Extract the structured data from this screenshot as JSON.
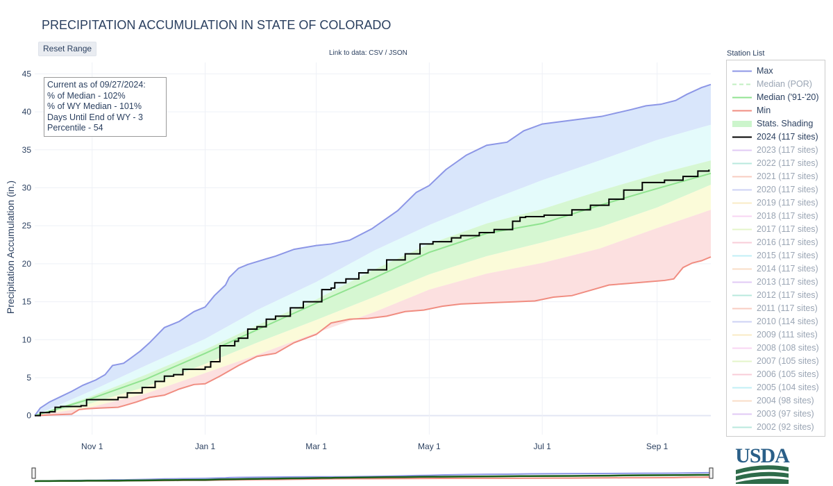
{
  "page": {
    "title": "PRECIPITATION ACCUMULATION IN STATE OF COLORADO",
    "reset_label": "Reset Range",
    "link_text": "Link to data:",
    "csv_label": "CSV",
    "separator": "/",
    "json_label": "JSON",
    "logo_text": "USDA"
  },
  "annotation": {
    "lines": [
      "Current as of 09/27/2024:",
      "% of Median - 102%",
      "% of WY Median - 101%",
      "Days Until End of WY - 3",
      "Percentile - 54"
    ]
  },
  "legend": {
    "title": "Station List",
    "items": [
      {
        "label": "Max",
        "color": "#8c96e6",
        "style": "solid",
        "faded": false
      },
      {
        "label": "Median (POR)",
        "color": "#90e390",
        "style": "dash",
        "faded": true
      },
      {
        "label": "Median ('91-'20)",
        "color": "#90e390",
        "style": "solid",
        "faded": false
      },
      {
        "label": "Min",
        "color": "#f08c80",
        "style": "solid",
        "faded": false
      },
      {
        "label": "Stats. Shading",
        "color": "#ccf5cc",
        "style": "band",
        "faded": false
      },
      {
        "label": "2024 (117 sites)",
        "color": "#000000",
        "style": "solid",
        "faded": false
      },
      {
        "label": "2023 (117 sites)",
        "color": "#c9a0ee",
        "style": "solid",
        "faded": true
      },
      {
        "label": "2022 (117 sites)",
        "color": "#7fd7c4",
        "style": "solid",
        "faded": true
      },
      {
        "label": "2021 (117 sites)",
        "color": "#f4a48e",
        "style": "solid",
        "faded": true
      },
      {
        "label": "2020 (117 sites)",
        "color": "#a5acec",
        "style": "solid",
        "faded": true
      },
      {
        "label": "2019 (117 sites)",
        "color": "#f5dc96",
        "style": "solid",
        "faded": true
      },
      {
        "label": "2018 (117 sites)",
        "color": "#f4b4ea",
        "style": "solid",
        "faded": true
      },
      {
        "label": "2017 (117 sites)",
        "color": "#cfee9e",
        "style": "solid",
        "faded": true
      },
      {
        "label": "2016 (117 sites)",
        "color": "#f4a4b9",
        "style": "solid",
        "faded": true
      },
      {
        "label": "2015 (117 sites)",
        "color": "#8fe3ef",
        "style": "solid",
        "faded": true
      },
      {
        "label": "2014 (117 sites)",
        "color": "#f7c39a",
        "style": "solid",
        "faded": true
      },
      {
        "label": "2013 (117 sites)",
        "color": "#c9a0ee",
        "style": "solid",
        "faded": true
      },
      {
        "label": "2012 (117 sites)",
        "color": "#7fd7c4",
        "style": "solid",
        "faded": true
      },
      {
        "label": "2011 (117 sites)",
        "color": "#f4a48e",
        "style": "solid",
        "faded": true
      },
      {
        "label": "2010 (114 sites)",
        "color": "#a5acec",
        "style": "solid",
        "faded": true
      },
      {
        "label": "2009 (111 sites)",
        "color": "#f5dc96",
        "style": "solid",
        "faded": true
      },
      {
        "label": "2008 (108 sites)",
        "color": "#f4b4ea",
        "style": "solid",
        "faded": true
      },
      {
        "label": "2007 (105 sites)",
        "color": "#cfee9e",
        "style": "solid",
        "faded": true
      },
      {
        "label": "2006 (105 sites)",
        "color": "#f4a4b9",
        "style": "solid",
        "faded": true
      },
      {
        "label": "2005 (104 sites)",
        "color": "#8fe3ef",
        "style": "solid",
        "faded": true
      },
      {
        "label": "2004 (98 sites)",
        "color": "#f7c39a",
        "style": "solid",
        "faded": true
      },
      {
        "label": "2003 (97 sites)",
        "color": "#c9a0ee",
        "style": "solid",
        "faded": true
      },
      {
        "label": "2002 (92 sites)",
        "color": "#7fd7c4",
        "style": "solid",
        "faded": true
      }
    ]
  },
  "chart_data": {
    "type": "area",
    "title": "PRECIPITATION ACCUMULATION IN STATE OF COLORADO",
    "xlabel": "",
    "ylabel": "Precipitation Accumulation (in.)",
    "x_unit": "days since Oct 1",
    "xlim": [
      0,
      365
    ],
    "ylim": [
      -2.5,
      46.5
    ],
    "x_ticks": [
      {
        "day": 31,
        "label": "Nov 1"
      },
      {
        "day": 92,
        "label": "Jan 1"
      },
      {
        "day": 152,
        "label": "Mar 1"
      },
      {
        "day": 213,
        "label": "May 1"
      },
      {
        "day": 274,
        "label": "Jul 1"
      },
      {
        "day": 336,
        "label": "Sep 1"
      }
    ],
    "y_ticks": [
      0,
      5,
      10,
      15,
      20,
      25,
      30,
      35,
      40,
      45
    ],
    "series": [
      {
        "name": "Max",
        "color": "#8c96e6",
        "x": [
          0,
          3,
          8,
          14,
          20,
          26,
          33,
          38,
          42,
          48,
          52,
          57,
          62,
          70,
          78,
          86,
          92,
          97,
          103,
          105,
          110,
          115,
          123,
          130,
          140,
          152,
          160,
          170,
          182,
          196,
          206,
          213,
          222,
          233,
          244,
          255,
          264,
          274,
          290,
          306,
          322,
          330,
          338,
          346,
          352,
          360,
          365
        ],
        "y": [
          0,
          1.0,
          1.8,
          2.5,
          3.2,
          4.0,
          4.7,
          5.4,
          6.6,
          6.9,
          7.6,
          8.5,
          9.6,
          11.6,
          12.4,
          13.7,
          14.3,
          15.8,
          17.2,
          18.2,
          19.4,
          19.9,
          20.5,
          21.0,
          21.9,
          22.4,
          22.6,
          23.1,
          24.6,
          27.0,
          29.4,
          30.3,
          32.4,
          34.3,
          35.6,
          36.0,
          37.5,
          38.4,
          38.9,
          39.4,
          40.3,
          40.8,
          41.0,
          41.5,
          42.3,
          43.2,
          43.6
        ]
      },
      {
        "name": "Stats. Shading (90th)",
        "color": "#dbe9fb",
        "x": [
          0,
          30,
          60,
          92,
          120,
          152,
          183,
          213,
          244,
          274,
          305,
          336,
          365
        ],
        "y": [
          0,
          3.2,
          6.6,
          10.1,
          13.9,
          17.6,
          21.7,
          25.1,
          28.2,
          31.0,
          33.6,
          36.3,
          38.3
        ]
      },
      {
        "name": "Stats. Shading (70th)",
        "color": "#e6fbfb",
        "x": [
          0,
          30,
          60,
          92,
          120,
          152,
          183,
          213,
          244,
          274,
          305,
          336,
          365
        ],
        "y": [
          0,
          2.5,
          5.4,
          8.7,
          11.9,
          15.3,
          19.2,
          22.6,
          25.3,
          27.2,
          29.6,
          31.8,
          33.6
        ]
      },
      {
        "name": "Median ('91-'20)",
        "color": "#90e390",
        "x": [
          0,
          30,
          60,
          92,
          120,
          152,
          183,
          213,
          244,
          274,
          305,
          336,
          365
        ],
        "y": [
          0,
          2.2,
          4.8,
          8.2,
          11.3,
          14.8,
          18.1,
          21.5,
          24.0,
          25.3,
          27.7,
          29.9,
          31.9
        ]
      },
      {
        "name": "Stats. Shading (30th)",
        "color": "#fbfbdc",
        "x": [
          0,
          30,
          60,
          92,
          120,
          152,
          183,
          213,
          244,
          274,
          305,
          336,
          365
        ],
        "y": [
          0,
          1.6,
          3.8,
          6.8,
          9.6,
          12.6,
          15.6,
          18.6,
          21.0,
          22.8,
          24.8,
          27.4,
          30.4
        ]
      },
      {
        "name": "Stats. Shading (10th)",
        "color": "#fce2e2",
        "x": [
          0,
          30,
          60,
          92,
          120,
          152,
          183,
          213,
          244,
          274,
          305,
          336,
          365
        ],
        "y": [
          0,
          1.1,
          2.9,
          5.6,
          8.0,
          10.9,
          13.6,
          16.6,
          18.7,
          20.1,
          22.0,
          24.7,
          27.1
        ]
      },
      {
        "name": "Min",
        "color": "#f08c80",
        "x": [
          0,
          10,
          20,
          24,
          28,
          35,
          45,
          48,
          55,
          62,
          70,
          78,
          86,
          92,
          100,
          110,
          120,
          130,
          140,
          152,
          160,
          170,
          180,
          190,
          200,
          210,
          220,
          230,
          240,
          250,
          260,
          270,
          280,
          290,
          300,
          310,
          320,
          330,
          340,
          345,
          350,
          355,
          360,
          365
        ],
        "y": [
          0,
          0.1,
          0.2,
          0.8,
          0.9,
          1.0,
          1.1,
          1.3,
          1.8,
          2.4,
          2.7,
          3.5,
          4.1,
          4.2,
          5.2,
          6.6,
          7.8,
          8.2,
          9.6,
          10.7,
          12.2,
          12.7,
          12.8,
          13.1,
          13.7,
          13.9,
          14.4,
          14.7,
          14.8,
          14.9,
          15.0,
          15.1,
          15.6,
          15.8,
          16.5,
          17.2,
          17.4,
          17.6,
          17.8,
          18.0,
          19.5,
          20.1,
          20.4,
          20.9
        ]
      },
      {
        "name": "2024 (117 sites)",
        "color": "#000000",
        "x": [
          0,
          3,
          8,
          11,
          14,
          25,
          28,
          45,
          50,
          58,
          65,
          70,
          75,
          80,
          92,
          95,
          100,
          108,
          110,
          115,
          120,
          125,
          130,
          138,
          145,
          155,
          160,
          162,
          168,
          175,
          180,
          190,
          200,
          208,
          215,
          225,
          230,
          240,
          248,
          258,
          262,
          265,
          275,
          290,
          300,
          310,
          318,
          328,
          340,
          350,
          358,
          364
        ],
        "y": [
          0,
          0.4,
          0.5,
          1.1,
          1.2,
          1.3,
          2.1,
          2.4,
          3.0,
          3.7,
          4.5,
          5.2,
          5.4,
          6.1,
          6.4,
          7.1,
          9.2,
          9.8,
          10.2,
          11.4,
          11.7,
          12.7,
          13.1,
          14.2,
          15.0,
          16.6,
          16.8,
          17.5,
          18.0,
          18.8,
          19.2,
          20.5,
          21.3,
          22.6,
          22.9,
          23.4,
          23.7,
          24.1,
          24.5,
          25.6,
          26.1,
          26.2,
          26.4,
          27.1,
          27.7,
          28.5,
          29.7,
          30.7,
          31.0,
          31.5,
          32.2,
          32.4
        ]
      }
    ]
  }
}
